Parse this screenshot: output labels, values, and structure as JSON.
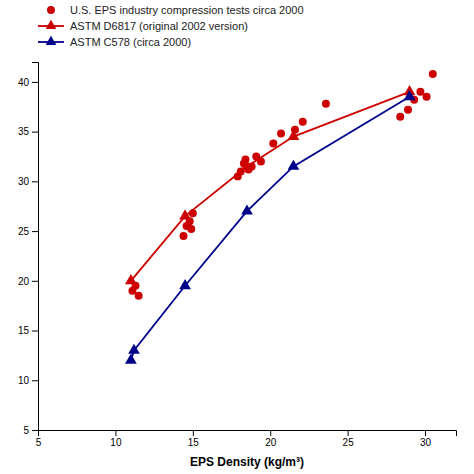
{
  "chart_data": {
    "type": "scatter",
    "xlabel": "EPS Density (kg/m³)",
    "xlim": [
      5,
      32
    ],
    "ylim": [
      5,
      42
    ],
    "xticks": [
      5,
      10,
      15,
      20,
      25,
      30
    ],
    "yticks": [
      5,
      10,
      15,
      20,
      25,
      30,
      35,
      40
    ],
    "grid": false,
    "legend": "upper left",
    "series": [
      {
        "name": "U.S. EPS industry compression tests circa 2000",
        "type": "scatter",
        "marker": "circle",
        "color": "#cc0000",
        "x": [
          11.1,
          11.3,
          11.5,
          14.4,
          14.6,
          14.8,
          15.0,
          14.9,
          17.9,
          18.1,
          18.3,
          18.6,
          18.4,
          18.8,
          19.1,
          19.4,
          20.2,
          20.7,
          21.6,
          22.1,
          23.6,
          28.4,
          28.9,
          29.3,
          29.7,
          30.1,
          30.5
        ],
        "values": [
          19.0,
          19.5,
          18.5,
          24.5,
          25.5,
          26.0,
          26.8,
          25.2,
          30.5,
          31.0,
          31.8,
          31.2,
          32.2,
          31.5,
          32.5,
          32.0,
          33.8,
          34.8,
          35.2,
          36.0,
          37.8,
          36.5,
          37.2,
          38.2,
          39.0,
          38.5,
          40.8
        ]
      },
      {
        "name": "ASTM D6817 (original 2002 version)",
        "type": "line",
        "marker": "triangle",
        "color": "#cc0000",
        "x": [
          11.0,
          14.5,
          18.5,
          21.5,
          29.0
        ],
        "values": [
          20.0,
          26.5,
          31.5,
          34.5,
          39.0
        ]
      },
      {
        "name": "ASTM C578 (circa 2000)",
        "type": "line",
        "marker": "triangle",
        "color": "#00008b",
        "x": [
          11.0,
          11.2,
          14.5,
          18.5,
          21.5,
          29.0
        ],
        "values": [
          12.0,
          13.0,
          19.5,
          27.0,
          31.5,
          38.5
        ]
      }
    ]
  }
}
